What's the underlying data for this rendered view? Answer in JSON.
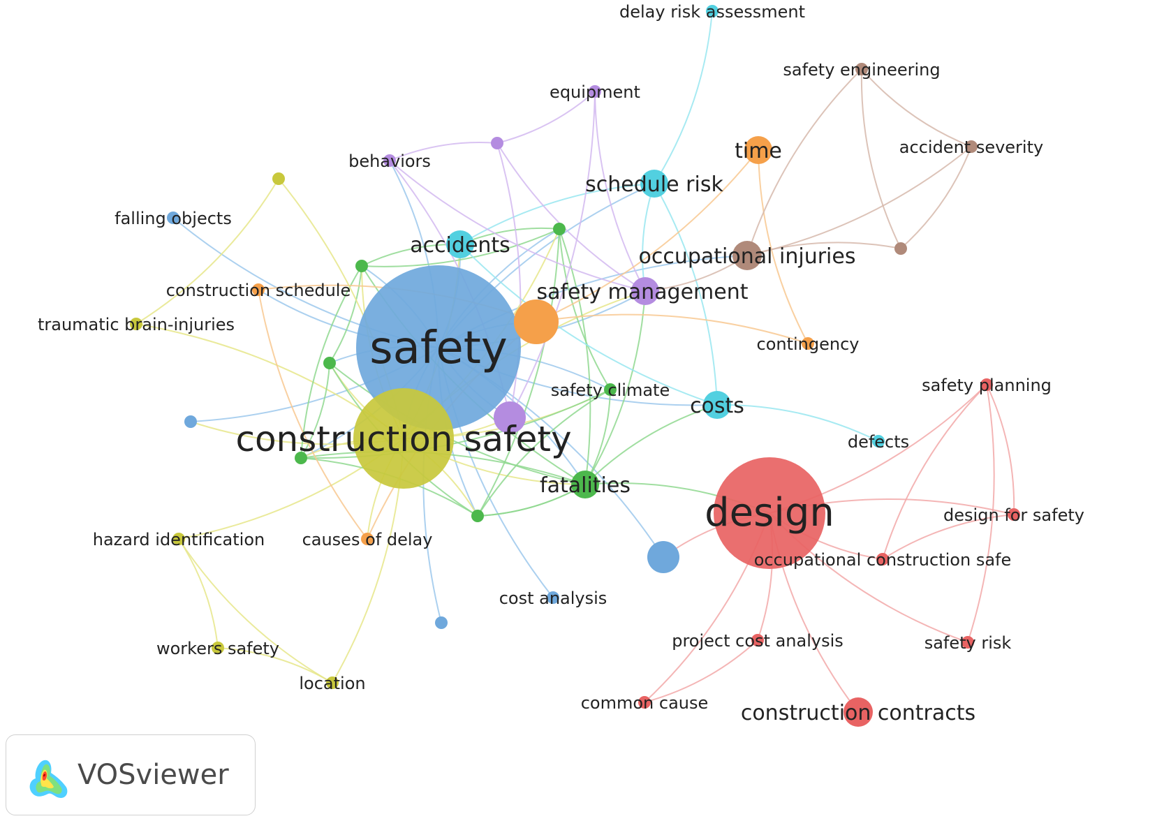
{
  "app": {
    "brand": "VOSviewer",
    "logo_icon": "vosviewer-density-logo-icon"
  },
  "clusters": {
    "red": "#e86363",
    "green": "#4cb84c",
    "blue": "#6fa8dc",
    "yellow": "#c8c83c",
    "purple": "#b48ce0",
    "cyan": "#52d0e0",
    "orange": "#f5a04a",
    "brown": "#b08a7a"
  },
  "edge_colors": {
    "red": "#f2a8a8",
    "green": "#8fd88f",
    "blue": "#9cc8ec",
    "yellow": "#e6e68a",
    "purple": "#d2b8f0",
    "cyan": "#98e6f0",
    "orange": "#f8c890",
    "brown": "#d6b8ac"
  },
  "nodes": [
    {
      "id": "safety",
      "label": "safety",
      "cluster": "blue",
      "weight": 1.0
    },
    {
      "id": "construction_safety",
      "label": "construction safety",
      "cluster": "yellow",
      "weight": 0.86
    },
    {
      "id": "design",
      "label": "design",
      "cluster": "red",
      "weight": 0.69
    },
    {
      "id": "falling_objects",
      "label": "falling objects",
      "cluster": "blue",
      "weight": 0.05
    },
    {
      "id": "cost_analysis",
      "label": "cost analysis",
      "cluster": "blue",
      "weight": 0.05
    },
    {
      "id": "blue_a",
      "label": "",
      "cluster": "blue",
      "weight": 0.05
    },
    {
      "id": "blue_b",
      "label": "",
      "cluster": "blue",
      "weight": 0.05
    },
    {
      "id": "blue_c",
      "label": "",
      "cluster": "blue",
      "weight": 0.18
    },
    {
      "id": "traumatic_brain_injuries",
      "label": "traumatic brain-injuries",
      "cluster": "yellow",
      "weight": 0.05
    },
    {
      "id": "hazard_identification",
      "label": "hazard identification",
      "cluster": "yellow",
      "weight": 0.05
    },
    {
      "id": "workers_safety",
      "label": "workers safety",
      "cluster": "yellow",
      "weight": 0.05
    },
    {
      "id": "location",
      "label": "location",
      "cluster": "yellow",
      "weight": 0.05
    },
    {
      "id": "yellow_a",
      "label": "",
      "cluster": "yellow",
      "weight": 0.08
    },
    {
      "id": "fatalities",
      "label": "fatalities",
      "cluster": "green",
      "weight": 0.2
    },
    {
      "id": "safety_climate",
      "label": "safety climate",
      "cluster": "green",
      "weight": 0.05
    },
    {
      "id": "green_a",
      "label": "",
      "cluster": "green",
      "weight": 0.08
    },
    {
      "id": "green_b",
      "label": "",
      "cluster": "green",
      "weight": 0.08
    },
    {
      "id": "green_c",
      "label": "",
      "cluster": "green",
      "weight": 0.08
    },
    {
      "id": "green_d",
      "label": "",
      "cluster": "green",
      "weight": 0.08
    },
    {
      "id": "green_e",
      "label": "",
      "cluster": "green",
      "weight": 0.08
    },
    {
      "id": "accidents",
      "label": "accidents",
      "cluster": "cyan",
      "weight": 0.2
    },
    {
      "id": "schedule_risk",
      "label": "schedule risk",
      "cluster": "cyan",
      "weight": 0.2
    },
    {
      "id": "costs",
      "label": "costs",
      "cluster": "cyan",
      "weight": 0.2
    },
    {
      "id": "delay_risk_assessment",
      "label": "delay risk assessment",
      "cluster": "cyan",
      "weight": 0.05
    },
    {
      "id": "defects",
      "label": "defects",
      "cluster": "cyan",
      "weight": 0.05
    },
    {
      "id": "behaviors",
      "label": "behaviors",
      "cluster": "purple",
      "weight": 0.05
    },
    {
      "id": "equipment",
      "label": "equipment",
      "cluster": "purple",
      "weight": 0.05
    },
    {
      "id": "safety_management",
      "label": "safety management",
      "cluster": "purple",
      "weight": 0.2
    },
    {
      "id": "purple_a",
      "label": "",
      "cluster": "purple",
      "weight": 0.08
    },
    {
      "id": "purple_b",
      "label": "",
      "cluster": "purple",
      "weight": 0.2
    },
    {
      "id": "time",
      "label": "time",
      "cluster": "orange",
      "weight": 0.2
    },
    {
      "id": "construction_schedule",
      "label": "construction schedule",
      "cluster": "orange",
      "weight": 0.05
    },
    {
      "id": "contingency",
      "label": "contingency",
      "cluster": "orange",
      "weight": 0.05
    },
    {
      "id": "causes_of_delay",
      "label": "causes of delay",
      "cluster": "orange",
      "weight": 0.05
    },
    {
      "id": "orange_a",
      "label": "",
      "cluster": "orange",
      "weight": 0.3
    },
    {
      "id": "safety_engineering",
      "label": "safety engineering",
      "cluster": "brown",
      "weight": 0.05
    },
    {
      "id": "accident_severity",
      "label": "accident severity",
      "cluster": "brown",
      "weight": 0.05
    },
    {
      "id": "occupational_injuries",
      "label": "occupational injuries",
      "cluster": "brown",
      "weight": 0.2
    },
    {
      "id": "brown_a",
      "label": "",
      "cluster": "brown",
      "weight": 0.05
    },
    {
      "id": "safety_planning",
      "label": "safety planning",
      "cluster": "red",
      "weight": 0.05
    },
    {
      "id": "design_for_safety",
      "label": "design for safety",
      "cluster": "red",
      "weight": 0.05
    },
    {
      "id": "occupational_construction_safe",
      "label": "occupational construction safe",
      "cluster": "red",
      "weight": 0.05
    },
    {
      "id": "project_cost_analysis",
      "label": "project cost analysis",
      "cluster": "red",
      "weight": 0.05
    },
    {
      "id": "safety_risk",
      "label": "safety risk",
      "cluster": "red",
      "weight": 0.05
    },
    {
      "id": "common_cause",
      "label": "common cause",
      "cluster": "red",
      "weight": 0.05
    },
    {
      "id": "construction_contracts",
      "label": "construction contracts",
      "cluster": "red",
      "weight": 0.2
    }
  ],
  "links": [
    [
      "safety",
      "construction_safety"
    ],
    [
      "safety",
      "fatalities"
    ],
    [
      "safety",
      "accidents"
    ],
    [
      "safety",
      "falling_objects"
    ],
    [
      "safety",
      "cost_analysis"
    ],
    [
      "safety",
      "blue_a"
    ],
    [
      "safety",
      "blue_b"
    ],
    [
      "safety",
      "blue_c"
    ],
    [
      "safety",
      "safety_management"
    ],
    [
      "safety",
      "schedule_risk"
    ],
    [
      "safety",
      "green_a"
    ],
    [
      "safety",
      "green_b"
    ],
    [
      "safety",
      "green_c"
    ],
    [
      "safety",
      "green_d"
    ],
    [
      "safety",
      "green_e"
    ],
    [
      "safety",
      "safety_climate"
    ],
    [
      "safety",
      "purple_b"
    ],
    [
      "safety",
      "orange_a"
    ],
    [
      "safety",
      "behaviors"
    ],
    [
      "safety",
      "construction_schedule"
    ],
    [
      "safety",
      "costs"
    ],
    [
      "safety",
      "occupational_injuries"
    ],
    [
      "construction_safety",
      "fatalities"
    ],
    [
      "construction_safety",
      "green_a"
    ],
    [
      "construction_safety",
      "green_b"
    ],
    [
      "construction_safety",
      "green_c"
    ],
    [
      "construction_safety",
      "green_d"
    ],
    [
      "construction_safety",
      "green_e"
    ],
    [
      "construction_safety",
      "safety_climate"
    ],
    [
      "construction_safety",
      "hazard_identification"
    ],
    [
      "construction_safety",
      "traumatic_brain_injuries"
    ],
    [
      "construction_safety",
      "location"
    ],
    [
      "construction_safety",
      "causes_of_delay"
    ],
    [
      "construction_safety",
      "safety_management"
    ],
    [
      "construction_safety",
      "purple_b"
    ],
    [
      "construction_safety",
      "blue_a"
    ],
    [
      "construction_safety",
      "accidents"
    ],
    [
      "fatalities",
      "green_a"
    ],
    [
      "fatalities",
      "green_b"
    ],
    [
      "fatalities",
      "green_c"
    ],
    [
      "fatalities",
      "green_d"
    ],
    [
      "fatalities",
      "green_e"
    ],
    [
      "fatalities",
      "safety_climate"
    ],
    [
      "fatalities",
      "design"
    ],
    [
      "fatalities",
      "safety_management"
    ],
    [
      "fatalities",
      "costs"
    ],
    [
      "green_a",
      "green_b"
    ],
    [
      "green_a",
      "green_c"
    ],
    [
      "green_a",
      "green_d"
    ],
    [
      "green_b",
      "green_e"
    ],
    [
      "green_b",
      "safety_climate"
    ],
    [
      "green_c",
      "green_d"
    ],
    [
      "green_c",
      "green_e"
    ],
    [
      "green_d",
      "green_e"
    ],
    [
      "green_d",
      "safety_climate"
    ],
    [
      "green_e",
      "safety_climate"
    ],
    [
      "green_b",
      "accidents"
    ],
    [
      "green_a",
      "accidents"
    ],
    [
      "green_e",
      "fatalities"
    ],
    [
      "accidents",
      "schedule_risk"
    ],
    [
      "accidents",
      "costs"
    ],
    [
      "schedule_risk",
      "costs"
    ],
    [
      "schedule_risk",
      "delay_risk_assessment"
    ],
    [
      "costs",
      "defects"
    ],
    [
      "schedule_risk",
      "safety_management"
    ],
    [
      "behaviors",
      "purple_a"
    ],
    [
      "behaviors",
      "safety_management"
    ],
    [
      "behaviors",
      "purple_b"
    ],
    [
      "equipment",
      "safety_management"
    ],
    [
      "equipment",
      "purple_b"
    ],
    [
      "purple_a",
      "safety_management"
    ],
    [
      "purple_a",
      "purple_b"
    ],
    [
      "purple_a",
      "equipment"
    ],
    [
      "time",
      "orange_a"
    ],
    [
      "time",
      "contingency"
    ],
    [
      "orange_a",
      "contingency"
    ],
    [
      "orange_a",
      "causes_of_delay"
    ],
    [
      "construction_schedule",
      "orange_a"
    ],
    [
      "construction_schedule",
      "causes_of_delay"
    ],
    [
      "occupational_injuries",
      "safety_engineering"
    ],
    [
      "occupational_injuries",
      "accident_severity"
    ],
    [
      "occupational_injuries",
      "brown_a"
    ],
    [
      "safety_engineering",
      "accident_severity"
    ],
    [
      "accident_severity",
      "brown_a"
    ],
    [
      "safety_engineering",
      "brown_a"
    ],
    [
      "occupational_injuries",
      "safety_management"
    ],
    [
      "design",
      "safety_planning"
    ],
    [
      "design",
      "design_for_safety"
    ],
    [
      "design",
      "occupational_construction_safe"
    ],
    [
      "design",
      "project_cost_analysis"
    ],
    [
      "design",
      "safety_risk"
    ],
    [
      "design",
      "common_cause"
    ],
    [
      "design",
      "construction_contracts"
    ],
    [
      "safety_planning",
      "design_for_safety"
    ],
    [
      "safety_planning",
      "occupational_construction_safe"
    ],
    [
      "safety_planning",
      "safety_risk"
    ],
    [
      "design_for_safety",
      "occupational_construction_safe"
    ],
    [
      "project_cost_analysis",
      "common_cause"
    ],
    [
      "design",
      "blue_c"
    ],
    [
      "hazard_identification",
      "workers_safety"
    ],
    [
      "hazard_identification",
      "location"
    ],
    [
      "workers_safety",
      "location"
    ],
    [
      "traumatic_brain_injuries",
      "yellow_a"
    ],
    [
      "yellow_a",
      "construction_safety"
    ]
  ]
}
